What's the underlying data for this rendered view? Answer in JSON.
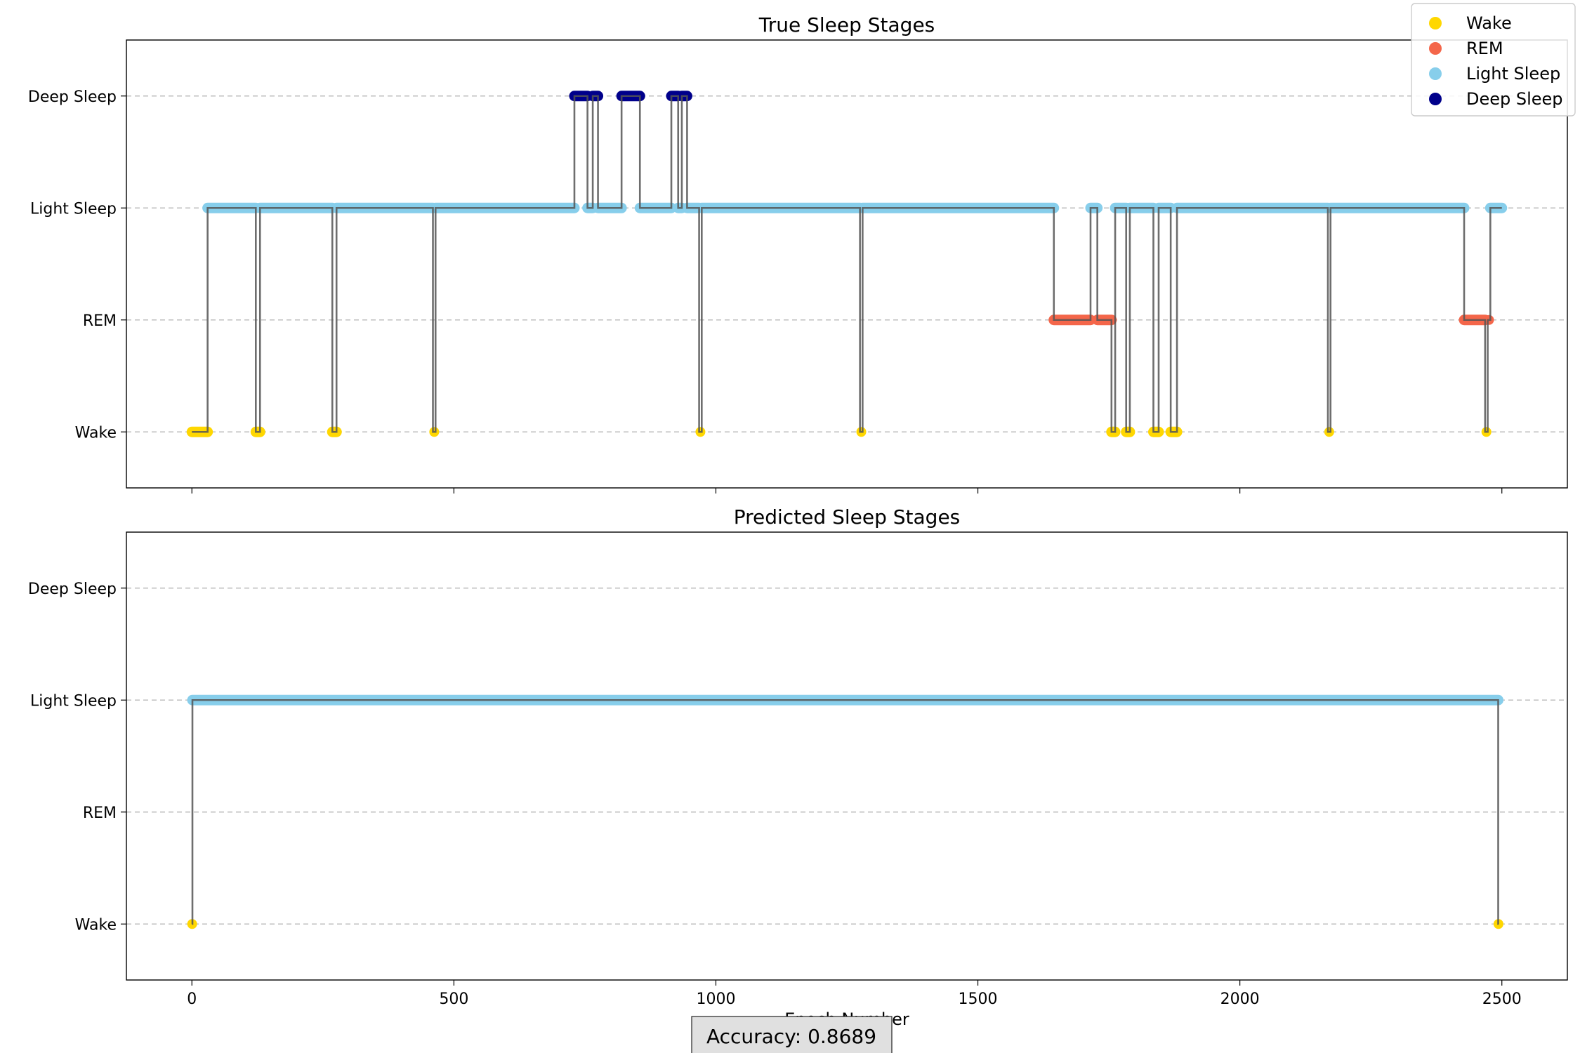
{
  "chart_data": [
    {
      "type": "scatter",
      "title": "True Sleep Stages",
      "xlabel": "",
      "ylabel": "",
      "xlim": [
        -125,
        2625
      ],
      "ylim": [
        -0.5,
        3.5
      ],
      "y_categories": [
        "Wake",
        "REM",
        "Light Sleep",
        "Deep Sleep"
      ],
      "grid": "y-dashed",
      "show_x_ticklabels": false,
      "colors": {
        "Wake": "#ffd700",
        "REM": "#f4664a",
        "Light Sleep": "#87ceeb",
        "Deep Sleep": "#00008b"
      },
      "segments": [
        {
          "start": 0,
          "end": 30,
          "stage": 0
        },
        {
          "start": 30,
          "end": 122,
          "stage": 2
        },
        {
          "start": 122,
          "end": 130,
          "stage": 0
        },
        {
          "start": 130,
          "end": 268,
          "stage": 2
        },
        {
          "start": 268,
          "end": 276,
          "stage": 0
        },
        {
          "start": 276,
          "end": 460,
          "stage": 2
        },
        {
          "start": 460,
          "end": 465,
          "stage": 0
        },
        {
          "start": 465,
          "end": 730,
          "stage": 2
        },
        {
          "start": 730,
          "end": 755,
          "stage": 3
        },
        {
          "start": 755,
          "end": 765,
          "stage": 2
        },
        {
          "start": 765,
          "end": 775,
          "stage": 3
        },
        {
          "start": 775,
          "end": 820,
          "stage": 2
        },
        {
          "start": 820,
          "end": 855,
          "stage": 3
        },
        {
          "start": 855,
          "end": 915,
          "stage": 2
        },
        {
          "start": 915,
          "end": 928,
          "stage": 3
        },
        {
          "start": 928,
          "end": 935,
          "stage": 2
        },
        {
          "start": 935,
          "end": 945,
          "stage": 3
        },
        {
          "start": 945,
          "end": 968,
          "stage": 2
        },
        {
          "start": 968,
          "end": 973,
          "stage": 0
        },
        {
          "start": 973,
          "end": 1275,
          "stage": 2
        },
        {
          "start": 1275,
          "end": 1280,
          "stage": 0
        },
        {
          "start": 1280,
          "end": 1645,
          "stage": 2
        },
        {
          "start": 1645,
          "end": 1715,
          "stage": 1
        },
        {
          "start": 1715,
          "end": 1728,
          "stage": 2
        },
        {
          "start": 1728,
          "end": 1755,
          "stage": 1
        },
        {
          "start": 1755,
          "end": 1762,
          "stage": 0
        },
        {
          "start": 1762,
          "end": 1783,
          "stage": 2
        },
        {
          "start": 1783,
          "end": 1790,
          "stage": 0
        },
        {
          "start": 1790,
          "end": 1835,
          "stage": 2
        },
        {
          "start": 1835,
          "end": 1845,
          "stage": 0
        },
        {
          "start": 1845,
          "end": 1868,
          "stage": 2
        },
        {
          "start": 1868,
          "end": 1880,
          "stage": 0
        },
        {
          "start": 1880,
          "end": 2168,
          "stage": 2
        },
        {
          "start": 2168,
          "end": 2173,
          "stage": 0
        },
        {
          "start": 2173,
          "end": 2428,
          "stage": 2
        },
        {
          "start": 2428,
          "end": 2468,
          "stage": 1
        },
        {
          "start": 2468,
          "end": 2473,
          "stage": 0
        },
        {
          "start": 2473,
          "end": 2478,
          "stage": 1
        },
        {
          "start": 2478,
          "end": 2500,
          "stage": 2
        }
      ]
    },
    {
      "type": "scatter",
      "title": "Predicted Sleep Stages",
      "xlabel": "Epoch Number",
      "ylabel": "",
      "xlim": [
        -125,
        2625
      ],
      "ylim": [
        -0.5,
        3.5
      ],
      "y_categories": [
        "Wake",
        "REM",
        "Light Sleep",
        "Deep Sleep"
      ],
      "grid": "y-dashed",
      "show_x_ticklabels": true,
      "x_ticks": [
        0,
        500,
        1000,
        1500,
        2000,
        2500
      ],
      "colors": {
        "Wake": "#ffd700",
        "REM": "#f4664a",
        "Light Sleep": "#87ceeb",
        "Deep Sleep": "#00008b"
      },
      "segments": [
        {
          "start": 0,
          "end": 1,
          "stage": 0
        },
        {
          "start": 1,
          "end": 2493,
          "stage": 2
        },
        {
          "start": 2493,
          "end": 2494,
          "stage": 0
        }
      ]
    }
  ],
  "legend": {
    "placement": "top-right",
    "entries": [
      {
        "label": "Wake",
        "color": "#ffd700"
      },
      {
        "label": "REM",
        "color": "#f4664a"
      },
      {
        "label": "Light Sleep",
        "color": "#87ceeb"
      },
      {
        "label": "Deep Sleep",
        "color": "#00008b"
      }
    ]
  },
  "accuracy_text": "Accuracy: 0.8689"
}
